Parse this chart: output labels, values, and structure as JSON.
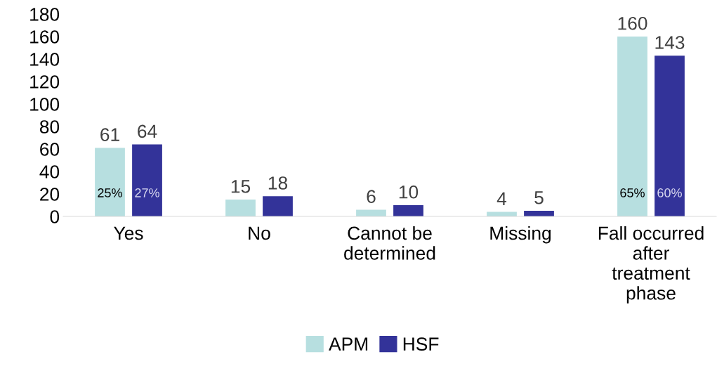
{
  "chart_data": {
    "type": "bar",
    "categories": [
      "Yes",
      "No",
      "Cannot be\ndetermined",
      "Missing",
      "Fall occurred\nafter\ntreatment\nphase"
    ],
    "series": [
      {
        "name": "APM",
        "color": "#b7dfe0",
        "values": [
          61,
          15,
          6,
          4,
          160
        ]
      },
      {
        "name": "HSF",
        "color": "#333399",
        "values": [
          64,
          18,
          10,
          5,
          143
        ]
      }
    ],
    "ylim": [
      0,
      180
    ],
    "yticks": [
      0,
      20,
      40,
      60,
      80,
      100,
      120,
      140,
      160,
      180
    ],
    "data_labels": true,
    "grid": false,
    "legend": "bottom",
    "annotations": [
      "25%",
      "27%",
      "65%",
      "60%"
    ]
  }
}
